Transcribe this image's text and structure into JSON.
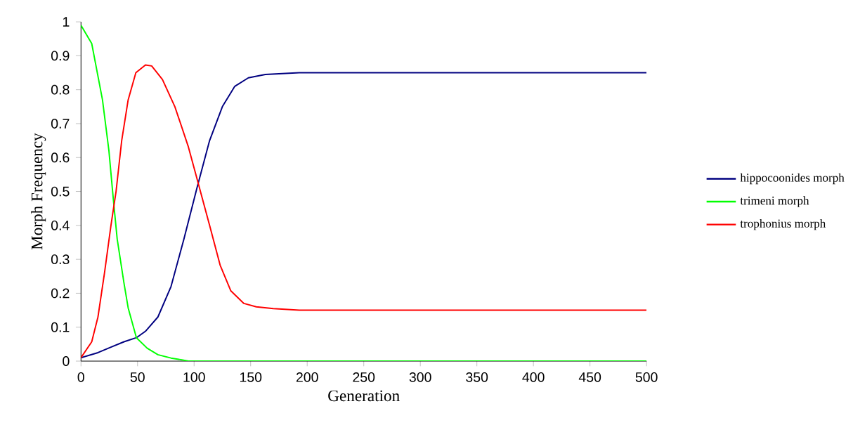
{
  "chart_data": {
    "type": "line",
    "xlabel": "Generation",
    "ylabel": "Morph Frequency",
    "xlim": [
      0,
      500
    ],
    "ylim": [
      0,
      1
    ],
    "xticks": [
      0,
      50,
      100,
      150,
      200,
      250,
      300,
      350,
      400,
      450,
      500
    ],
    "yticks": [
      0,
      0.1,
      0.2,
      0.3,
      0.4,
      0.5,
      0.6,
      0.7,
      0.8,
      0.9,
      1
    ],
    "grid": false,
    "legend": "right",
    "marker": "none",
    "line_style": "solid",
    "series": [
      {
        "name": "hippocoonides morph",
        "color": "#000080",
        "x": [
          0,
          15,
          26.5,
          38,
          49,
          57,
          68,
          79.6,
          91,
          102.5,
          113.7,
          125,
          136,
          148,
          163,
          193,
          300,
          400,
          500
        ],
        "values": [
          0.01,
          0.025,
          0.041,
          0.057,
          0.069,
          0.088,
          0.13,
          0.22,
          0.36,
          0.51,
          0.65,
          0.75,
          0.81,
          0.835,
          0.845,
          0.85,
          0.85,
          0.85,
          0.85
        ]
      },
      {
        "name": "trimeni morph",
        "color": "#00ff00",
        "x": [
          0,
          9.5,
          19,
          24.7,
          28.5,
          32,
          38,
          41.7,
          49,
          58.5,
          68,
          79.6,
          89,
          95,
          200,
          300,
          400,
          500
        ],
        "values": [
          0.99,
          0.936,
          0.77,
          0.62,
          0.48,
          0.36,
          0.23,
          0.157,
          0.069,
          0.038,
          0.019,
          0.009,
          0.004,
          0,
          0,
          0,
          0,
          0
        ]
      },
      {
        "name": "trophonius morph",
        "color": "#ff0000",
        "x": [
          0,
          9.5,
          15,
          20.8,
          26.5,
          31,
          36,
          41.7,
          48.5,
          57,
          62.5,
          72,
          83,
          94.7,
          104,
          113.7,
          123,
          132.5,
          144,
          155,
          170,
          193,
          300,
          400,
          500
        ],
        "values": [
          0.01,
          0.057,
          0.13,
          0.26,
          0.4,
          0.5,
          0.65,
          0.77,
          0.85,
          0.873,
          0.87,
          0.83,
          0.75,
          0.634,
          0.52,
          0.4,
          0.283,
          0.207,
          0.17,
          0.16,
          0.155,
          0.15,
          0.15,
          0.15,
          0.15
        ]
      }
    ]
  }
}
